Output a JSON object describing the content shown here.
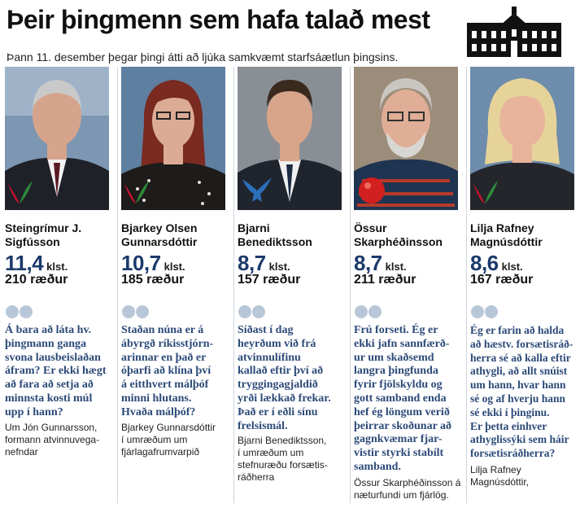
{
  "header": {
    "title": "Þeir þingmenn sem hafa talað mest",
    "subtitle": "Þann 11. desember þegar þingi átti að ljúka samkvæmt starfsáætlun þingsins."
  },
  "hours_unit": "klst.",
  "speeches_unit": "ræður",
  "politicians": [
    {
      "name_line1": "Steingrímur J.",
      "name_line2": "Sigfússon",
      "hours": "11,4",
      "speeches": "210",
      "party_logo": "green-red-party-logo",
      "quote_lines": [
        "Á bara að láta hv.",
        "þingmann ganga",
        "svona lausbeislaðan",
        "áfram? Er ekki hægt",
        "að fara að setja að",
        "minnsta kosti múl",
        "upp í hann?"
      ],
      "source_lines": [
        "Um Jón Gunnarsson,",
        "formann atvinnuvega-",
        "nefndar"
      ]
    },
    {
      "name_line1": "Bjarkey Olsen",
      "name_line2": "Gunnarsdóttir",
      "hours": "10,7",
      "speeches": "185",
      "party_logo": "green-red-party-logo",
      "quote_lines": [
        "Staðan núna er á",
        "ábyrgð ríkisstjórn-",
        "arinnar en það er",
        "óþarfi að klína því",
        "á eitthvert málþóf",
        "minni hlutans.",
        "Hvaða málþóf?"
      ],
      "source_lines": [
        "Bjarkey Gunnarsdóttir",
        "í umræðum um",
        "fjárlagafrumvarpið"
      ]
    },
    {
      "name_line1": "Bjarni",
      "name_line2": "Benediktsson",
      "hours": "8,7",
      "speeches": "157",
      "party_logo": "blue-falcon-logo",
      "quote_lines": [
        "Síðast í dag",
        "heyrðum við frá",
        "atvinnulífinu",
        "kallað eftir því að",
        "tryggingagjaldið",
        "yrði lækkað frekar.",
        "Það er í eðli sínu",
        "frelsismál."
      ],
      "source_lines": [
        "Bjarni Benediktsson,",
        "í umræðum um",
        "stefnuræðu forsætis-",
        "ráðherra"
      ]
    },
    {
      "name_line1": "Össur",
      "name_line2": "Skarphéðinsson",
      "hours": "8,7",
      "speeches": "211",
      "party_logo": "red-rose-logo",
      "quote_lines": [
        "Frú forseti. Ég er",
        "ekki jafn sannfærð-",
        "ur um skaðsemd",
        "langra þingfunda",
        "fyrir fjölskyldu og",
        "gott samband enda",
        "hef ég löngum verið",
        "þeirrar skoðunar að",
        "gagnkvæmar fjar-",
        "vistir styrki stabílt",
        "samband."
      ],
      "source_lines": [
        "Össur Skarphéðinsson á",
        "næturfundi um fjárlög."
      ]
    },
    {
      "name_line1": "Lilja Rafney",
      "name_line2": "Magnúsdóttir",
      "hours": "8,6",
      "speeches": "167",
      "party_logo": "green-red-party-logo",
      "quote_lines": [
        "Ég er farin að halda",
        "að hæstv. forsætisráð-",
        "herra sé að kalla eftir",
        "athygli, að allt snúist",
        "um hann, hvar hann",
        "sé og af hverju hann",
        "sé ekki í þinginu.",
        "Er þetta einhver",
        "athyglissýki sem háir",
        "forsætisráðherra?"
      ],
      "source_lines": [
        "Lilja Rafney",
        "Magnúsdóttir,"
      ]
    }
  ],
  "colors": {
    "headline": "#111111",
    "hours": "#1b3a6b",
    "quote": "#2c4a78",
    "bubble": "#b8c7d8"
  }
}
